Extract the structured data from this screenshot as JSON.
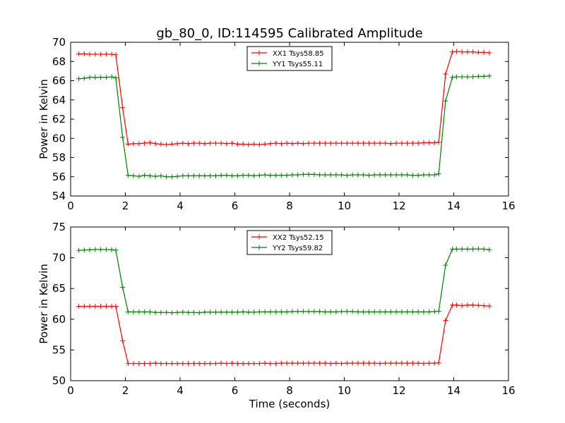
{
  "figure": {
    "title": "gb_80_0, ID:114595 Calibrated Amplitude",
    "xlabel": "Time (seconds)"
  },
  "chart_data": [
    {
      "type": "line",
      "title": "gb_80_0, ID:114595 Calibrated Amplitude",
      "xlabel": "",
      "ylabel": "Power in Kelvin",
      "xlim": [
        0,
        16
      ],
      "ylim": [
        54,
        70
      ],
      "xticks": [
        "0",
        "2",
        "4",
        "6",
        "8",
        "10",
        "12",
        "14",
        "16"
      ],
      "yticks": [
        "54",
        "56",
        "58",
        "60",
        "62",
        "64",
        "66",
        "68",
        "70"
      ],
      "grid": false,
      "legend_position": "top-center",
      "x": [
        0.3,
        0.5,
        0.7,
        0.9,
        1.1,
        1.3,
        1.5,
        1.65,
        1.9,
        2.1,
        2.3,
        2.5,
        2.7,
        2.9,
        3.1,
        3.3,
        3.5,
        3.7,
        3.9,
        4.1,
        4.3,
        4.5,
        4.7,
        4.9,
        5.1,
        5.3,
        5.5,
        5.7,
        5.9,
        6.1,
        6.3,
        6.5,
        6.7,
        6.9,
        7.1,
        7.3,
        7.5,
        7.7,
        7.9,
        8.1,
        8.3,
        8.5,
        8.7,
        8.9,
        9.1,
        9.3,
        9.5,
        9.7,
        9.9,
        10.1,
        10.3,
        10.5,
        10.7,
        10.9,
        11.1,
        11.3,
        11.5,
        11.7,
        11.9,
        12.1,
        12.3,
        12.5,
        12.7,
        12.9,
        13.1,
        13.3,
        13.45,
        13.7,
        13.95,
        14.1,
        14.3,
        14.5,
        14.7,
        14.9,
        15.1,
        15.3
      ],
      "series": [
        {
          "name": "XX1 Tsys58.85",
          "color": "#ff0000",
          "values": [
            68.8,
            68.8,
            68.75,
            68.75,
            68.75,
            68.75,
            68.75,
            68.7,
            63.2,
            59.4,
            59.45,
            59.45,
            59.5,
            59.55,
            59.45,
            59.4,
            59.35,
            59.4,
            59.45,
            59.5,
            59.45,
            59.5,
            59.5,
            59.45,
            59.5,
            59.5,
            59.5,
            59.45,
            59.5,
            59.4,
            59.4,
            59.35,
            59.4,
            59.35,
            59.4,
            59.45,
            59.5,
            59.45,
            59.5,
            59.45,
            59.5,
            59.45,
            59.5,
            59.5,
            59.5,
            59.5,
            59.5,
            59.5,
            59.5,
            59.5,
            59.5,
            59.5,
            59.5,
            59.5,
            59.5,
            59.5,
            59.5,
            59.45,
            59.5,
            59.5,
            59.5,
            59.5,
            59.5,
            59.55,
            59.55,
            59.55,
            59.6,
            66.7,
            69.0,
            69.05,
            69.0,
            69.0,
            69.0,
            68.95,
            68.95,
            68.9
          ]
        },
        {
          "name": "YY1 Tsys55.11",
          "color": "#008000",
          "values": [
            66.2,
            66.25,
            66.35,
            66.35,
            66.35,
            66.35,
            66.4,
            66.3,
            60.1,
            56.15,
            56.1,
            56.05,
            56.15,
            56.1,
            56.05,
            56.1,
            56.0,
            56.0,
            56.05,
            56.1,
            56.1,
            56.1,
            56.1,
            56.1,
            56.1,
            56.1,
            56.15,
            56.15,
            56.1,
            56.1,
            56.15,
            56.15,
            56.1,
            56.15,
            56.2,
            56.15,
            56.15,
            56.15,
            56.15,
            56.2,
            56.2,
            56.25,
            56.25,
            56.25,
            56.2,
            56.2,
            56.2,
            56.2,
            56.2,
            56.15,
            56.2,
            56.2,
            56.2,
            56.15,
            56.2,
            56.2,
            56.2,
            56.2,
            56.2,
            56.2,
            56.2,
            56.15,
            56.15,
            56.2,
            56.2,
            56.2,
            56.3,
            63.9,
            66.35,
            66.4,
            66.4,
            66.4,
            66.4,
            66.45,
            66.45,
            66.5
          ]
        }
      ]
    },
    {
      "type": "line",
      "title": "",
      "xlabel": "Time (seconds)",
      "ylabel": "Power in Kelvin",
      "xlim": [
        0,
        16
      ],
      "ylim": [
        50,
        75
      ],
      "xticks": [
        "0",
        "2",
        "4",
        "6",
        "8",
        "10",
        "12",
        "14",
        "16"
      ],
      "yticks": [
        "50",
        "55",
        "60",
        "65",
        "70",
        "75"
      ],
      "grid": false,
      "legend_position": "top-center",
      "x": [
        0.3,
        0.5,
        0.7,
        0.9,
        1.1,
        1.3,
        1.5,
        1.65,
        1.9,
        2.1,
        2.3,
        2.5,
        2.7,
        2.9,
        3.1,
        3.3,
        3.5,
        3.7,
        3.9,
        4.1,
        4.3,
        4.5,
        4.7,
        4.9,
        5.1,
        5.3,
        5.5,
        5.7,
        5.9,
        6.1,
        6.3,
        6.5,
        6.7,
        6.9,
        7.1,
        7.3,
        7.5,
        7.7,
        7.9,
        8.1,
        8.3,
        8.5,
        8.7,
        8.9,
        9.1,
        9.3,
        9.5,
        9.7,
        9.9,
        10.1,
        10.3,
        10.5,
        10.7,
        10.9,
        11.1,
        11.3,
        11.5,
        11.7,
        11.9,
        12.1,
        12.3,
        12.5,
        12.7,
        12.9,
        13.1,
        13.3,
        13.45,
        13.7,
        13.95,
        14.1,
        14.3,
        14.5,
        14.7,
        14.9,
        15.1,
        15.3
      ],
      "series": [
        {
          "name": "XX2 Tsys52.15",
          "color": "#ff0000",
          "values": [
            62.1,
            62.1,
            62.1,
            62.1,
            62.1,
            62.1,
            62.1,
            62.1,
            56.5,
            52.8,
            52.8,
            52.8,
            52.8,
            52.8,
            52.85,
            52.8,
            52.8,
            52.8,
            52.8,
            52.8,
            52.8,
            52.8,
            52.8,
            52.8,
            52.8,
            52.8,
            52.85,
            52.8,
            52.85,
            52.8,
            52.8,
            52.8,
            52.8,
            52.8,
            52.85,
            52.8,
            52.8,
            52.85,
            52.85,
            52.85,
            52.85,
            52.85,
            52.85,
            52.85,
            52.85,
            52.85,
            52.8,
            52.85,
            52.8,
            52.85,
            52.85,
            52.85,
            52.85,
            52.85,
            52.85,
            52.8,
            52.85,
            52.85,
            52.85,
            52.85,
            52.85,
            52.85,
            52.85,
            52.8,
            52.85,
            52.85,
            52.9,
            59.8,
            62.3,
            62.3,
            62.2,
            62.3,
            62.3,
            62.25,
            62.2,
            62.15
          ]
        },
        {
          "name": "YY2 Tsys59.82",
          "color": "#008000",
          "values": [
            71.2,
            71.25,
            71.3,
            71.35,
            71.35,
            71.35,
            71.3,
            71.25,
            65.2,
            61.2,
            61.2,
            61.2,
            61.2,
            61.2,
            61.1,
            61.1,
            61.1,
            61.05,
            61.1,
            61.15,
            61.1,
            61.1,
            61.05,
            61.15,
            61.15,
            61.15,
            61.15,
            61.15,
            61.15,
            61.15,
            61.2,
            61.15,
            61.15,
            61.2,
            61.2,
            61.2,
            61.2,
            61.2,
            61.2,
            61.25,
            61.25,
            61.25,
            61.25,
            61.25,
            61.25,
            61.2,
            61.2,
            61.2,
            61.25,
            61.25,
            61.25,
            61.2,
            61.2,
            61.2,
            61.2,
            61.2,
            61.2,
            61.2,
            61.2,
            61.2,
            61.2,
            61.2,
            61.2,
            61.2,
            61.2,
            61.25,
            61.3,
            68.8,
            71.4,
            71.4,
            71.4,
            71.4,
            71.4,
            71.45,
            71.4,
            71.3
          ]
        }
      ]
    }
  ]
}
